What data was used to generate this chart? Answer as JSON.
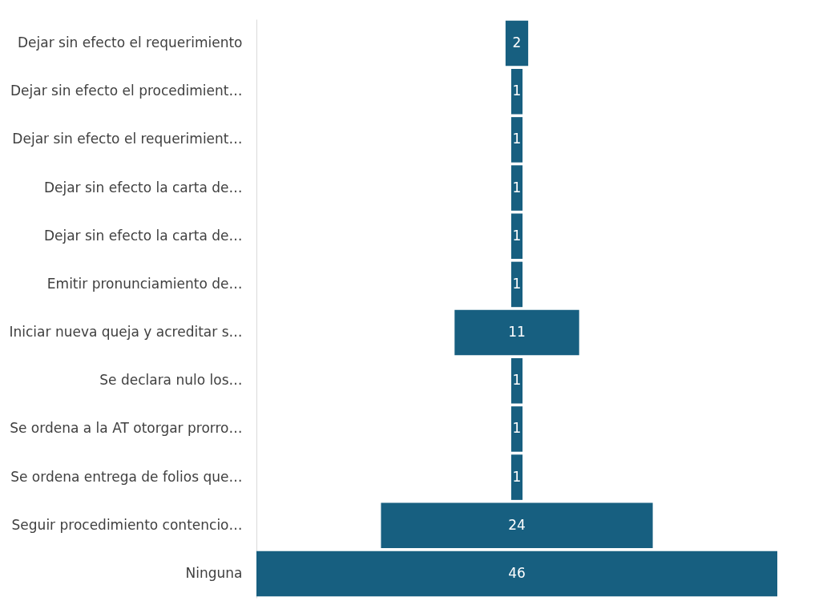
{
  "chart_data": {
    "type": "other",
    "categories": [
      "Dejar sin efecto el requerimiento",
      "Dejar sin efecto el procedimient…",
      "Dejar sin efecto el requerimient…",
      "Dejar sin efecto la carta de…",
      "Dejar sin efecto la carta de…",
      "Emitir pronunciamiento de…",
      "Iniciar nueva queja y acreditar s…",
      "Se declara nulo los…",
      "Se ordena a la AT otorgar prorro…",
      "Se ordena entrega de folios que…",
      "Seguir procedimiento contencio…",
      "Ninguna"
    ],
    "values": [
      2,
      1,
      1,
      1,
      1,
      1,
      11,
      1,
      1,
      1,
      24,
      46
    ],
    "color": "#175f80",
    "data_labels": true
  }
}
